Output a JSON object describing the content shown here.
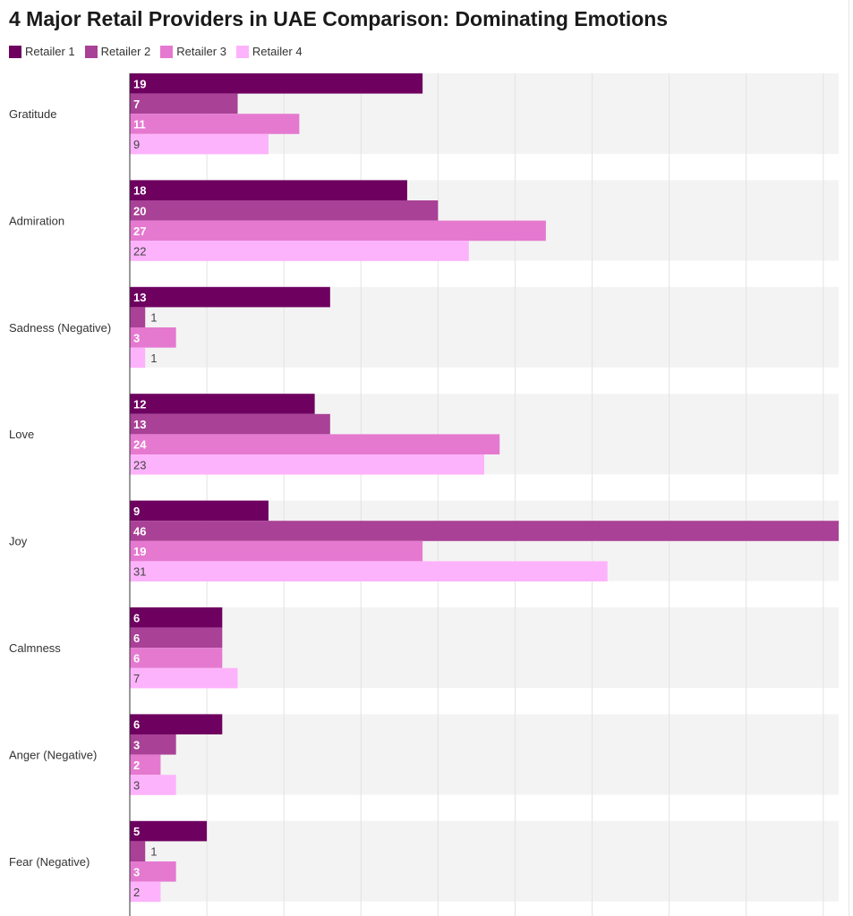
{
  "chart_data": {
    "type": "bar",
    "orientation": "horizontal",
    "title": "4 Major Retail Providers in UAE Comparison: Dominating Emotions",
    "xlabel": "",
    "ylabel": "",
    "xlim": [
      0,
      46
    ],
    "grid": true,
    "legend": "top-left",
    "categories": [
      "Gratitude",
      "Admiration",
      "Sadness (Negative)",
      "Love",
      "Joy",
      "Calmness",
      "Anger (Negative)",
      "Fear (Negative)"
    ],
    "series": [
      {
        "name": "Retailer 1",
        "color": "#6e0060",
        "label_color": "#ffffff",
        "values": [
          19,
          18,
          13,
          12,
          9,
          6,
          6,
          5
        ]
      },
      {
        "name": "Retailer 2",
        "color": "#a94196",
        "label_color": "#ffffff",
        "values": [
          7,
          20,
          1,
          13,
          46,
          6,
          3,
          1
        ]
      },
      {
        "name": "Retailer 3",
        "color": "#e579d0",
        "label_color": "#ffffff",
        "values": [
          11,
          27,
          3,
          24,
          19,
          6,
          2,
          3
        ]
      },
      {
        "name": "Retailer 4",
        "color": "#fdb3fb",
        "label_color": "#444444",
        "values": [
          9,
          22,
          1,
          23,
          31,
          7,
          3,
          2
        ]
      }
    ],
    "band_color": "#f3f3f3",
    "grid_color": "#e3e3e3"
  }
}
